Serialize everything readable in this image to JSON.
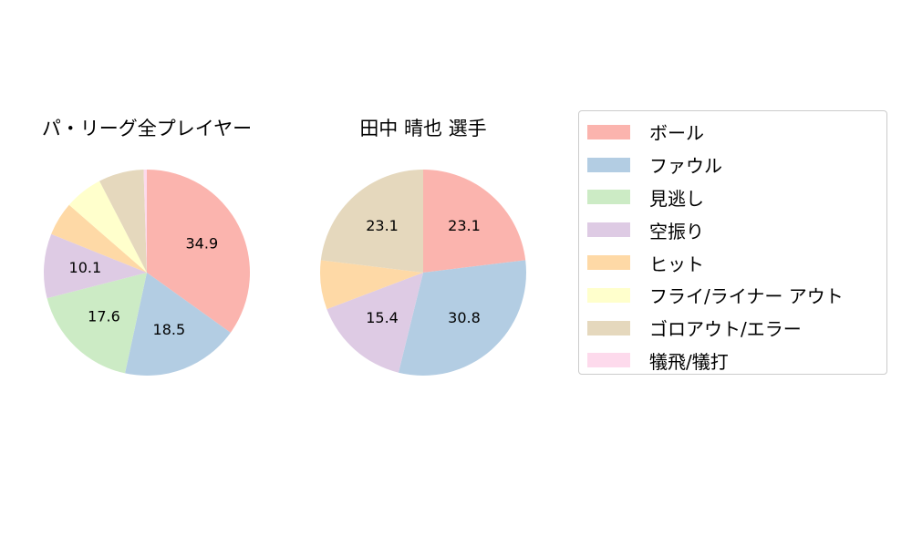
{
  "chart_data": {
    "type": "pie",
    "categories": [
      "ボール",
      "ファウル",
      "見逃し",
      "空振り",
      "ヒット",
      "フライ/ライナー アウト",
      "ゴロアウト/エラー",
      "犠飛/犠打"
    ],
    "colors": [
      "#fbb4ae",
      "#b3cde3",
      "#ccebc5",
      "#decbe4",
      "#fed9a6",
      "#ffffcc",
      "#e5d8bd",
      "#fddaec"
    ],
    "legend_position": "right",
    "charts": [
      {
        "title": "パ・リーグ全プレイヤー",
        "values": [
          34.9,
          18.5,
          17.6,
          10.1,
          5.3,
          6.0,
          7.1,
          0.5
        ],
        "labels": [
          "34.9",
          "18.5",
          "17.6",
          "10.1",
          "",
          "",
          "",
          ""
        ]
      },
      {
        "title": "田中 晴也  選手",
        "values": [
          23.1,
          30.8,
          0,
          15.4,
          7.7,
          0,
          23.1,
          0
        ],
        "labels": [
          "23.1",
          "30.8",
          "",
          "15.4",
          "",
          "",
          "23.1",
          ""
        ]
      }
    ]
  }
}
